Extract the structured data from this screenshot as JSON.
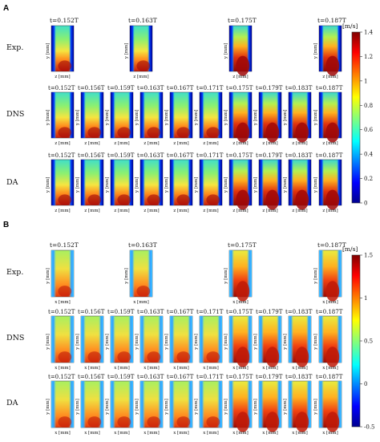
{
  "panels": [
    {
      "letter": "A",
      "exp_times": [
        "t=0.152T",
        "t=0.163T",
        "t=0.175T",
        "t=0.187T"
      ],
      "sim_times": [
        "t=0.152T",
        "t=0.156T",
        "t=0.159T",
        "t=0.163T",
        "t=0.167T",
        "t=0.171T",
        "t=0.175T",
        "t=0.179T",
        "t=0.183T",
        "t=0.187T"
      ],
      "rows": [
        "Exp.",
        "DNS",
        "DA"
      ],
      "xlabel": "z [mm]",
      "ylabel": "y [mm]",
      "colorbar": {
        "unit": "[m/s]",
        "min": 0,
        "max": 1.4,
        "ticks": [
          "1.4",
          "1.2",
          "1",
          "0.8",
          "0.6",
          "0.4",
          "0.2",
          "0"
        ]
      }
    },
    {
      "letter": "B",
      "exp_times": [
        "t=0.152T",
        "t=0.163T",
        "t=0.175T",
        "t=0.187T"
      ],
      "sim_times": [
        "t=0.152T",
        "t=0.156T",
        "t=0.159T",
        "t=0.163T",
        "t=0.167T",
        "t=0.171T",
        "t=0.175T",
        "t=0.179T",
        "t=0.183T",
        "t=0.187T"
      ],
      "rows": [
        "Exp.",
        "DNS",
        "DA"
      ],
      "xlabel": "x [mm]",
      "ylabel": "y [mm]",
      "colorbar": {
        "unit": "[m/s]",
        "min": -0.5,
        "max": 1.5,
        "ticks": [
          "1.5",
          "1",
          "0.5",
          "0",
          "-0.5"
        ]
      }
    }
  ],
  "colors": {
    "jet": [
      "#00008f",
      "#0000ff",
      "#00ffff",
      "#ffff00",
      "#ff0000",
      "#800000"
    ]
  }
}
